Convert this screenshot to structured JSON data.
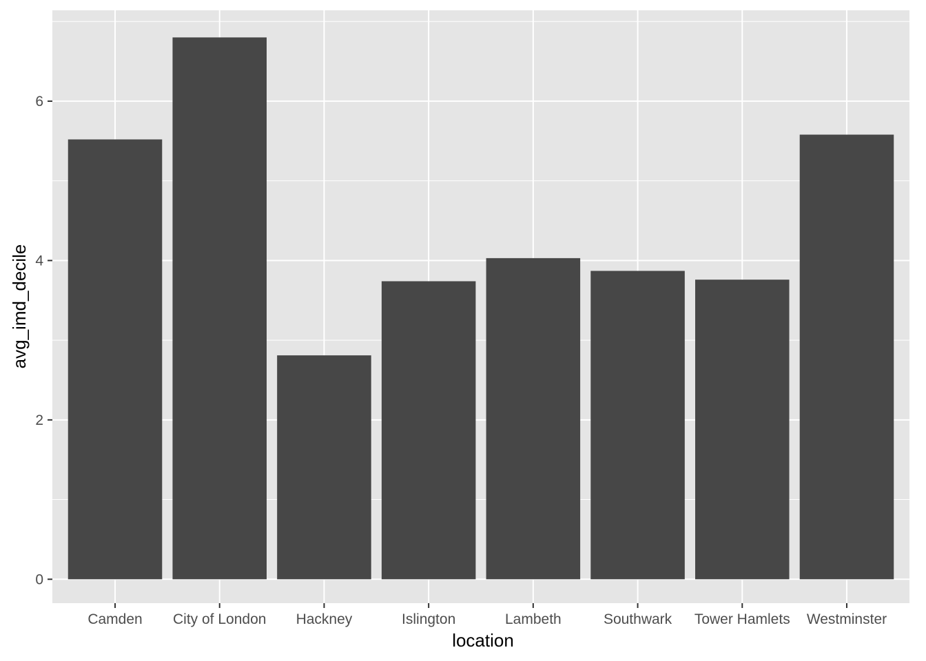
{
  "chart_data": {
    "type": "bar",
    "title": "",
    "xlabel": "location",
    "ylabel": "avg_imd_decile",
    "categories": [
      "Camden",
      "City of London",
      "Hackney",
      "Islington",
      "Lambeth",
      "Southwark",
      "Tower Hamlets",
      "Westminster"
    ],
    "values": [
      5.52,
      6.8,
      2.81,
      3.74,
      4.03,
      3.87,
      3.76,
      5.58
    ],
    "ylim": [
      -0.3,
      7.14
    ],
    "yticks": [
      0,
      2,
      4,
      6
    ],
    "grid": true,
    "legend": "none"
  },
  "colors": {
    "panel": "#e5e5e5",
    "grid": "#ffffff",
    "bar": "#474747",
    "tick": "#333333"
  }
}
